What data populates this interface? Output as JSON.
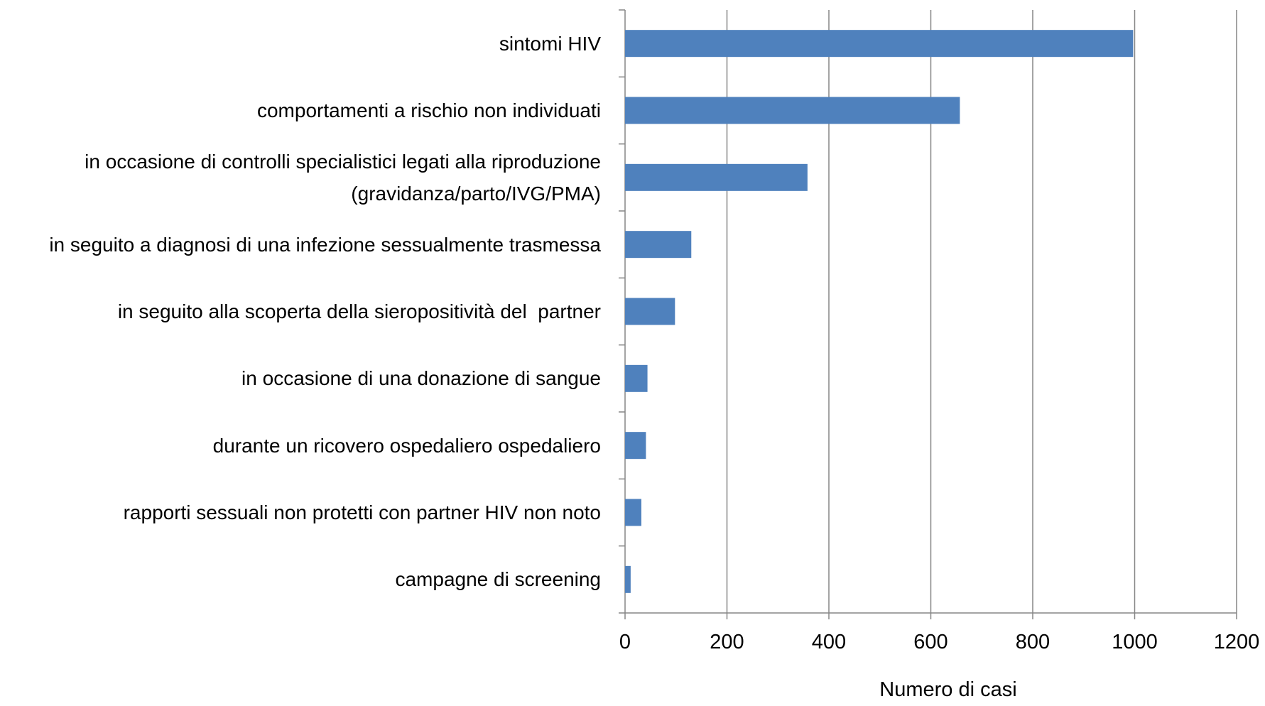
{
  "chart_data": {
    "type": "bar",
    "orientation": "horizontal",
    "categories": [
      "sintomi HIV",
      "comportamenti a rischio non individuati",
      "in occasione di controlli specialistici legati alla riproduzione  (gravidanza/parto/IVG/PMA)",
      "in seguito a diagnosi di una infezione sessualmente trasmessa",
      "in seguito alla scoperta della sieropositività del  partner",
      "in occasione di una donazione di sangue",
      "durante un ricovero ospedaliero ospedaliero",
      "rapporti sessuali non protetti con partner HIV non noto",
      "campagne di screening"
    ],
    "values": [
      997,
      657,
      358,
      130,
      98,
      44,
      41,
      32,
      11
    ],
    "color": "#4f81bd",
    "xlabel": "Numero di casi",
    "xlim": [
      0,
      1200
    ],
    "xticks": [
      0,
      200,
      400,
      600,
      800,
      1000,
      1200
    ],
    "grid": true
  }
}
